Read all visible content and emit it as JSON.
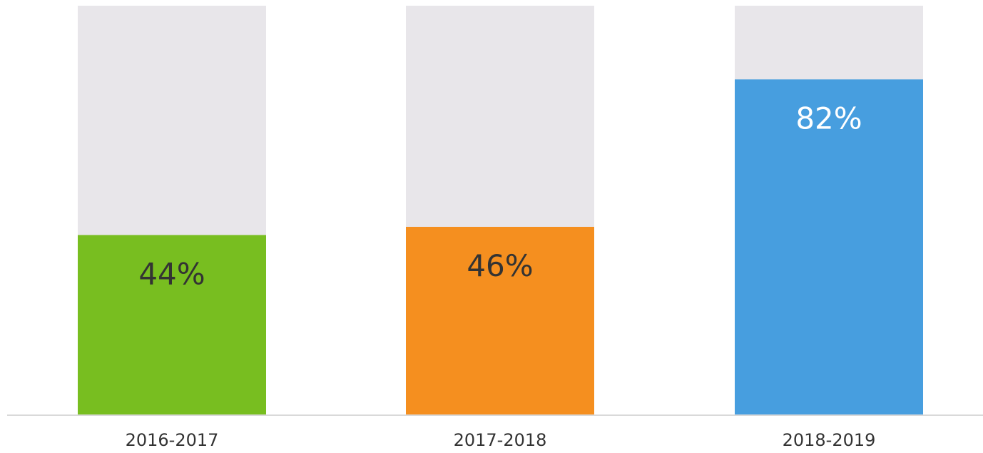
{
  "chart_data": {
    "type": "bar",
    "categories": [
      "2016-2017",
      "2017-2018",
      "2018-2019"
    ],
    "values": [
      44,
      46,
      82
    ],
    "data_labels": [
      "44%",
      "46%",
      "82%"
    ],
    "ylim": [
      0,
      100
    ],
    "grid": false,
    "legend": "none",
    "colors": {
      "bars": [
        "#78BE20",
        "#F58F1F",
        "#479EDF"
      ],
      "track": "#E8E6EA",
      "axis": "#D9D9D9",
      "label_dark": "#333333",
      "label_light": "#FFFFFF",
      "tick_text": "#333333"
    }
  }
}
